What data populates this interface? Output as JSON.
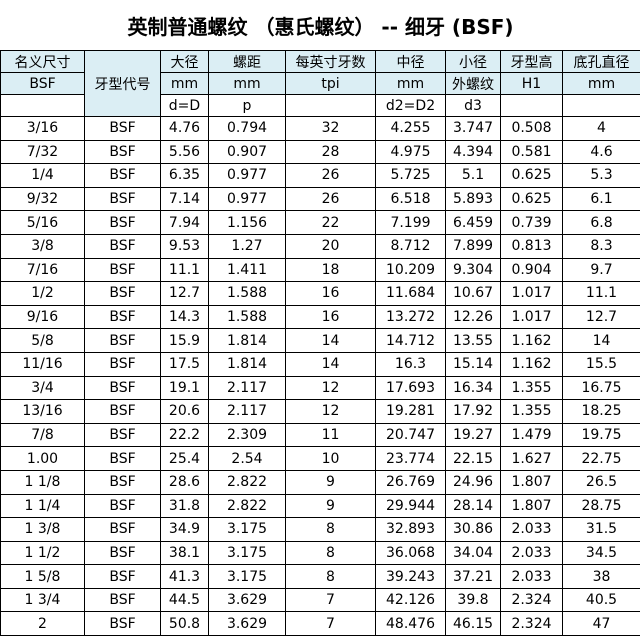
{
  "title": "英制普通螺纹 （惠氏螺纹） -- 细牙 (BSF)",
  "header": {
    "row1": [
      "名义尺寸",
      "牙型代号",
      "大径",
      "螺距",
      "每英寸牙数",
      "中径",
      "小径",
      "牙型高",
      "底孔直径"
    ],
    "row2": [
      "BSF",
      "mm",
      "mm",
      "tpi",
      "mm",
      "外螺纹",
      "H1",
      "mm"
    ],
    "row3": [
      "d=D",
      "p",
      "d2=D2",
      "d3"
    ]
  },
  "rows": [
    [
      "3/16",
      "BSF",
      "4.76",
      "0.794",
      "32",
      "4.255",
      "3.747",
      "0.508",
      "4"
    ],
    [
      "7/32",
      "BSF",
      "5.56",
      "0.907",
      "28",
      "4.975",
      "4.394",
      "0.581",
      "4.6"
    ],
    [
      "1/4",
      "BSF",
      "6.35",
      "0.977",
      "26",
      "5.725",
      "5.1",
      "0.625",
      "5.3"
    ],
    [
      "9/32",
      "BSF",
      "7.14",
      "0.977",
      "26",
      "6.518",
      "5.893",
      "0.625",
      "6.1"
    ],
    [
      "5/16",
      "BSF",
      "7.94",
      "1.156",
      "22",
      "7.199",
      "6.459",
      "0.739",
      "6.8"
    ],
    [
      "3/8",
      "BSF",
      "9.53",
      "1.27",
      "20",
      "8.712",
      "7.899",
      "0.813",
      "8.3"
    ],
    [
      "7/16",
      "BSF",
      "11.1",
      "1.411",
      "18",
      "10.209",
      "9.304",
      "0.904",
      "9.7"
    ],
    [
      "1/2",
      "BSF",
      "12.7",
      "1.588",
      "16",
      "11.684",
      "10.67",
      "1.017",
      "11.1"
    ],
    [
      "9/16",
      "BSF",
      "14.3",
      "1.588",
      "16",
      "13.272",
      "12.26",
      "1.017",
      "12.7"
    ],
    [
      "5/8",
      "BSF",
      "15.9",
      "1.814",
      "14",
      "14.712",
      "13.55",
      "1.162",
      "14"
    ],
    [
      "11/16",
      "BSF",
      "17.5",
      "1.814",
      "14",
      "16.3",
      "15.14",
      "1.162",
      "15.5"
    ],
    [
      "3/4",
      "BSF",
      "19.1",
      "2.117",
      "12",
      "17.693",
      "16.34",
      "1.355",
      "16.75"
    ],
    [
      "13/16",
      "BSF",
      "20.6",
      "2.117",
      "12",
      "19.281",
      "17.92",
      "1.355",
      "18.25"
    ],
    [
      "7/8",
      "BSF",
      "22.2",
      "2.309",
      "11",
      "20.747",
      "19.27",
      "1.479",
      "19.75"
    ],
    [
      "1.00",
      "BSF",
      "25.4",
      "2.54",
      "10",
      "23.774",
      "22.15",
      "1.627",
      "22.75"
    ],
    [
      "1 1/8",
      "BSF",
      "28.6",
      "2.822",
      "9",
      "26.769",
      "24.96",
      "1.807",
      "26.5"
    ],
    [
      "1 1/4",
      "BSF",
      "31.8",
      "2.822",
      "9",
      "29.944",
      "28.14",
      "1.807",
      "28.75"
    ],
    [
      "1 3/8",
      "BSF",
      "34.9",
      "3.175",
      "8",
      "32.893",
      "30.86",
      "2.033",
      "31.5"
    ],
    [
      "1 1/2",
      "BSF",
      "38.1",
      "3.175",
      "8",
      "36.068",
      "34.04",
      "2.033",
      "34.5"
    ],
    [
      "1 5/8",
      "BSF",
      "41.3",
      "3.175",
      "8",
      "39.243",
      "37.21",
      "2.033",
      "38"
    ],
    [
      "1 3/4",
      "BSF",
      "44.5",
      "3.629",
      "7",
      "42.126",
      "39.8",
      "2.324",
      "40.5"
    ],
    [
      "2",
      "BSF",
      "50.8",
      "3.629",
      "7",
      "48.476",
      "46.15",
      "2.324",
      "47"
    ]
  ]
}
